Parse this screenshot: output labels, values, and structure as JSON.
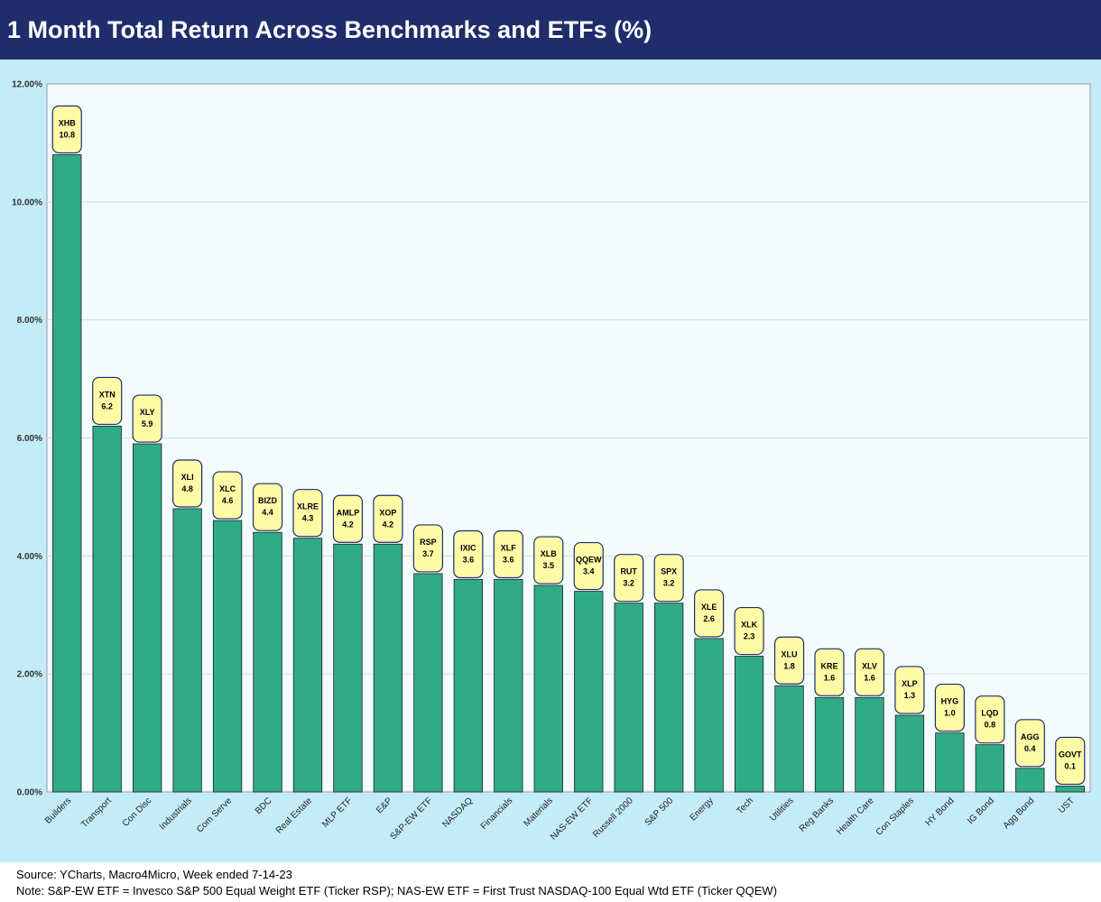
{
  "title": "1 Month Total Return Across Benchmarks and ETFs (%)",
  "colors": {
    "title_bar": "#1f2d6b",
    "panel_background": "#c4ecf8",
    "plot_background": "#f4fbfd",
    "bar": "#2fac86",
    "label_box": "#fdfba6",
    "label_border": "#1f2d6b"
  },
  "chart_data": {
    "type": "bar",
    "categories": [
      "Builders",
      "Transport",
      "Con Disc",
      "Industrials",
      "Com Serve",
      "BDC",
      "Real Estate",
      "MLP ETF",
      "E&P",
      "S&P-EW ETF",
      "NASDAQ",
      "Financials",
      "Materials",
      "NAS-EW ETF",
      "Russell 2000",
      "S&P 500",
      "Energy",
      "Tech",
      "Utilities",
      "Reg Banks",
      "Health Care",
      "Con Staples",
      "HY Bond",
      "IG Bond",
      "Agg Bond",
      "UST"
    ],
    "tickers": [
      "XHB",
      "XTN",
      "XLY",
      "XLI",
      "XLC",
      "BIZD",
      "XLRE",
      "AMLP",
      "XOP",
      "RSP",
      "IXIC",
      "XLF",
      "XLB",
      "QQEW",
      "RUT",
      "SPX",
      "XLE",
      "XLK",
      "XLU",
      "KRE",
      "XLV",
      "XLP",
      "HYG",
      "LQD",
      "AGG",
      "GOVT"
    ],
    "values": [
      10.8,
      6.2,
      5.9,
      4.8,
      4.6,
      4.4,
      4.3,
      4.2,
      4.2,
      3.7,
      3.6,
      3.6,
      3.5,
      3.4,
      3.2,
      3.2,
      2.6,
      2.3,
      1.8,
      1.6,
      1.6,
      1.3,
      1.0,
      0.8,
      0.4,
      0.1
    ],
    "value_labels": [
      "10.8",
      "6.2",
      "5.9",
      "4.8",
      "4.6",
      "4.4",
      "4.3",
      "4.2",
      "4.2",
      "3.7",
      "3.6",
      "3.6",
      "3.5",
      "3.4",
      "3.2",
      "3.2",
      "2.6",
      "2.3",
      "1.8",
      "1.6",
      "1.6",
      "1.3",
      "1.0",
      "0.8",
      "0.4",
      "0.1"
    ],
    "ylim": [
      0,
      12
    ],
    "y_ticks": [
      0,
      2,
      4,
      6,
      8,
      10,
      12
    ],
    "y_tick_labels": [
      "0.00%",
      "2.00%",
      "4.00%",
      "6.00%",
      "8.00%",
      "10.00%",
      "12.00%"
    ],
    "grid": true,
    "legend": "none"
  },
  "footer": {
    "source": "Source: YCharts, Macro4Micro, Week ended 7-14-23",
    "note": "Note: S&P-EW ETF = Invesco S&P 500 Equal Weight ETF (Ticker RSP); NAS-EW ETF = First Trust NASDAQ-100 Equal Wtd ETF (Ticker QQEW)"
  }
}
